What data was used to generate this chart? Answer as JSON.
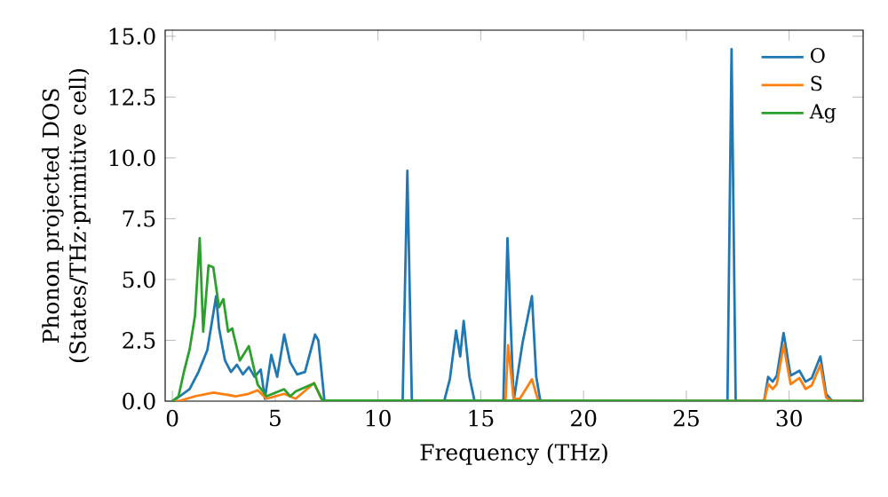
{
  "chart_data": {
    "type": "line",
    "xlabel": "Frequency (THz)",
    "ylabel": "Phonon projected DOS\n(States/THz·primitive cell)",
    "xlim": [
      -0.35,
      33.6
    ],
    "ylim": [
      0,
      15.25
    ],
    "xticks": [
      0,
      5,
      10,
      15,
      20,
      25,
      30
    ],
    "yticks": [
      {
        "value": 0,
        "label": "0.0"
      },
      {
        "value": 2.5,
        "label": "2.5"
      },
      {
        "value": 5,
        "label": "5.0"
      },
      {
        "value": 7.5,
        "label": "7.5"
      },
      {
        "value": 10,
        "label": "10.0"
      },
      {
        "value": 12.5,
        "label": "12.5"
      },
      {
        "value": 15,
        "label": "15.0"
      }
    ],
    "legend": "top right",
    "grid": false,
    "marker": "none",
    "line_style": "solid",
    "series": [
      {
        "name": "O",
        "color": "#1f77b4",
        "x": [
          0,
          0.2,
          0.84,
          1.27,
          1.7,
          2.13,
          2.27,
          2.56,
          2.85,
          3.14,
          3.43,
          3.72,
          4.0,
          4.3,
          4.5,
          4.81,
          5.1,
          5.44,
          5.73,
          6.07,
          6.45,
          6.94,
          7.1,
          7.4,
          11.2,
          11.43,
          11.65,
          13.22,
          13.5,
          13.8,
          14.0,
          14.17,
          14.45,
          14.7,
          16.1,
          16.3,
          16.6,
          17.03,
          17.49,
          17.7,
          17.9,
          27.0,
          27.2,
          27.4,
          28.78,
          28.98,
          29.2,
          29.4,
          29.73,
          30.07,
          30.5,
          30.8,
          31.1,
          31.52,
          31.8,
          32.1,
          33.6
        ],
        "values": [
          0,
          0.1,
          0.5,
          1.2,
          2.1,
          4.32,
          3.0,
          1.67,
          1.2,
          1.5,
          1.1,
          1.4,
          1.0,
          1.3,
          0.1,
          1.9,
          1.0,
          2.74,
          1.6,
          1.1,
          1.2,
          2.74,
          2.5,
          0,
          0,
          9.47,
          0,
          0,
          0.92,
          2.9,
          1.84,
          3.3,
          1.0,
          0,
          0,
          6.7,
          0,
          2.38,
          4.32,
          1.0,
          0,
          0,
          14.47,
          0,
          0,
          1.0,
          0.8,
          1.05,
          2.8,
          1.05,
          1.25,
          0.8,
          0.95,
          1.84,
          0.3,
          0,
          0
        ]
      },
      {
        "name": "S",
        "color": "#ff7f0e",
        "x": [
          0,
          0.3,
          1.1,
          2.0,
          2.4,
          3.1,
          3.7,
          4.15,
          4.58,
          5.44,
          6.0,
          6.9,
          7.3,
          16.2,
          16.33,
          16.6,
          16.9,
          17.2,
          17.49,
          17.8,
          28.78,
          28.98,
          29.2,
          29.4,
          29.73,
          30.07,
          30.5,
          30.8,
          31.1,
          31.52,
          31.8,
          32.1,
          33.6
        ],
        "values": [
          0,
          0,
          0.2,
          0.35,
          0.3,
          0.2,
          0.3,
          0.45,
          0.1,
          0.3,
          0.1,
          0.75,
          0,
          0,
          2.3,
          0.1,
          0.1,
          0.5,
          0.9,
          0,
          0,
          0.7,
          0.5,
          0.7,
          2.3,
          0.7,
          0.95,
          0.5,
          0.65,
          1.5,
          0.15,
          0,
          0
        ]
      },
      {
        "name": "Ag",
        "color": "#2ca02c",
        "x": [
          0,
          0.3,
          0.55,
          0.84,
          1.1,
          1.33,
          1.5,
          1.76,
          1.99,
          2.27,
          2.48,
          2.71,
          2.91,
          3.28,
          3.72,
          4.15,
          4.58,
          5.44,
          5.73,
          6.0,
          6.89,
          7.3,
          33.6
        ],
        "values": [
          0,
          0.2,
          1.16,
          2.13,
          3.5,
          6.7,
          2.86,
          5.58,
          5.5,
          3.86,
          4.2,
          2.86,
          2.99,
          1.67,
          2.26,
          0.68,
          0.2,
          0.49,
          0.2,
          0.4,
          0.73,
          0.03,
          0
        ]
      }
    ]
  }
}
